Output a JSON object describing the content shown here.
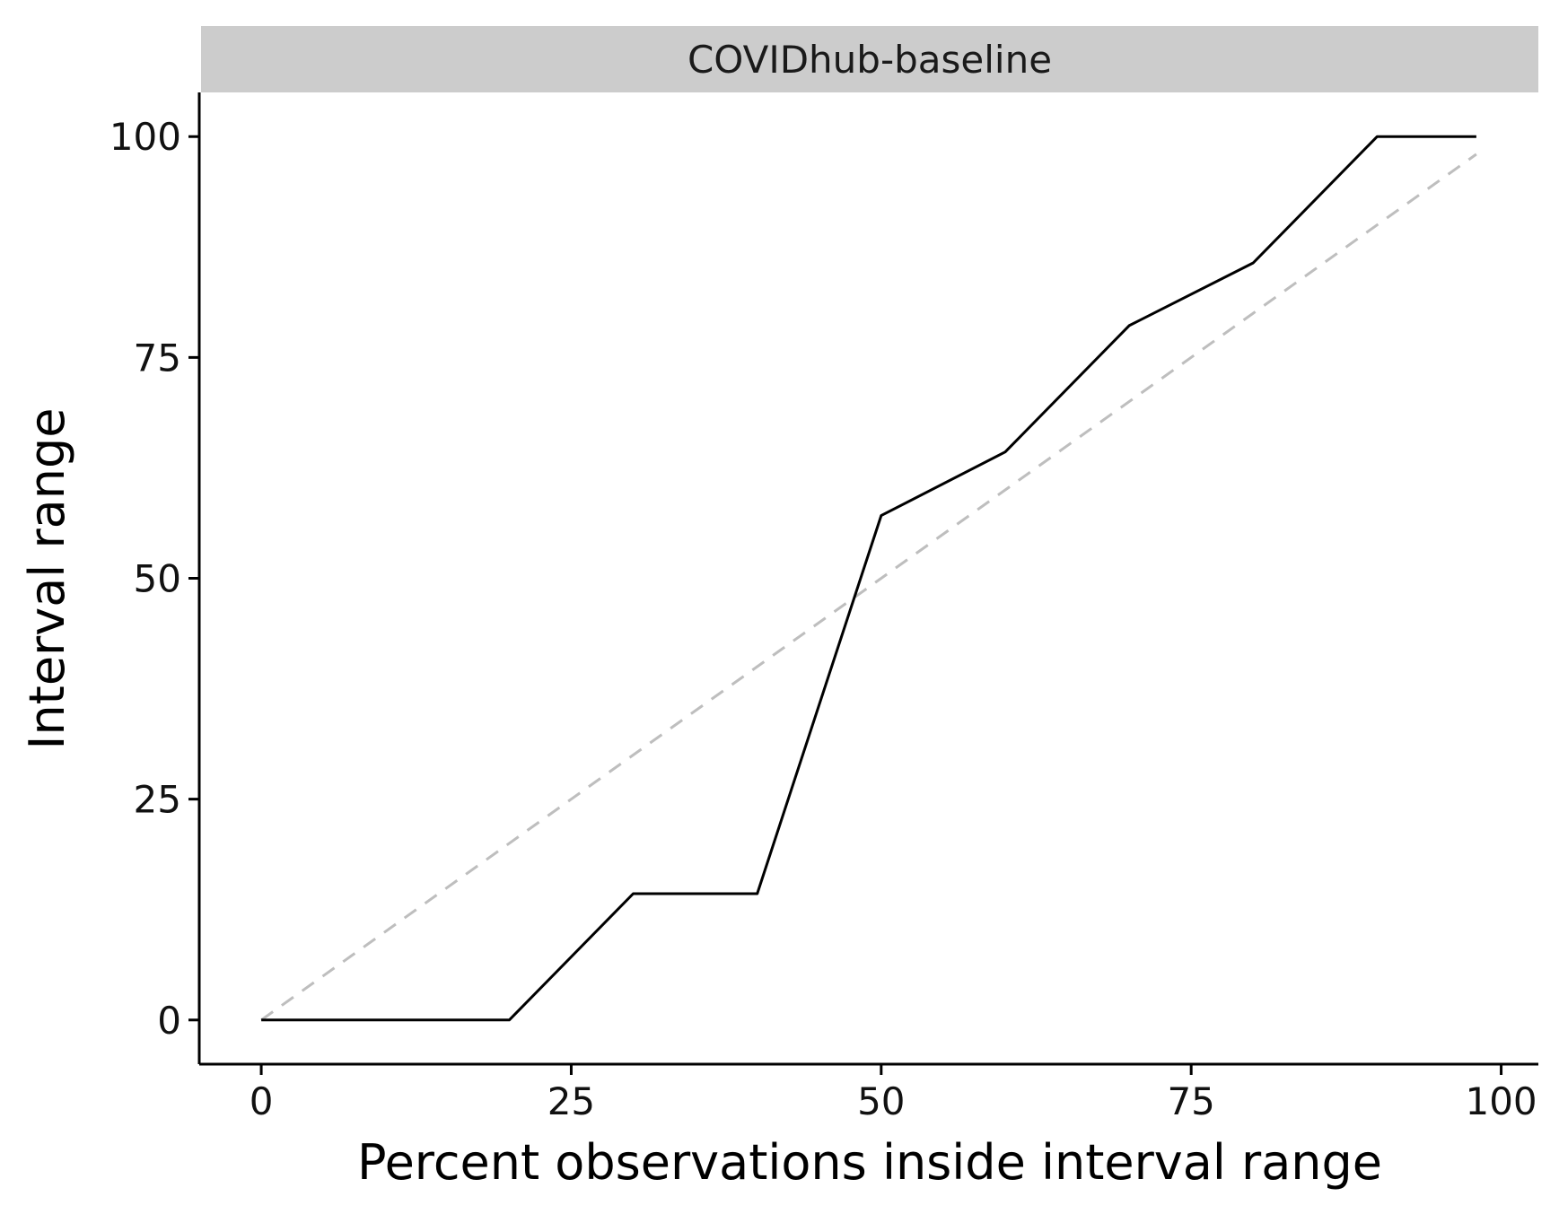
{
  "chart_data": {
    "type": "line",
    "facet_label": "COVIDhub-baseline",
    "xlabel": "Percent observations inside interval range",
    "ylabel": "Interval range",
    "xlim": [
      -5,
      103
    ],
    "ylim": [
      -5,
      105
    ],
    "x_ticks": [
      "0",
      "25",
      "50",
      "75",
      "100"
    ],
    "y_ticks": [
      "0",
      "25",
      "50",
      "75",
      "100"
    ],
    "grid": false,
    "reference_line": {
      "style": "dashed",
      "color": "#bebebe",
      "x": [
        0,
        98
      ],
      "y": [
        0,
        98
      ]
    },
    "series": [
      {
        "color": "#000000",
        "x": [
          0,
          10,
          20,
          30,
          40,
          50,
          60,
          70,
          80,
          90,
          98
        ],
        "y": [
          0,
          0,
          0,
          14.3,
          14.3,
          57.1,
          64.3,
          78.6,
          85.7,
          100,
          100
        ]
      }
    ]
  }
}
